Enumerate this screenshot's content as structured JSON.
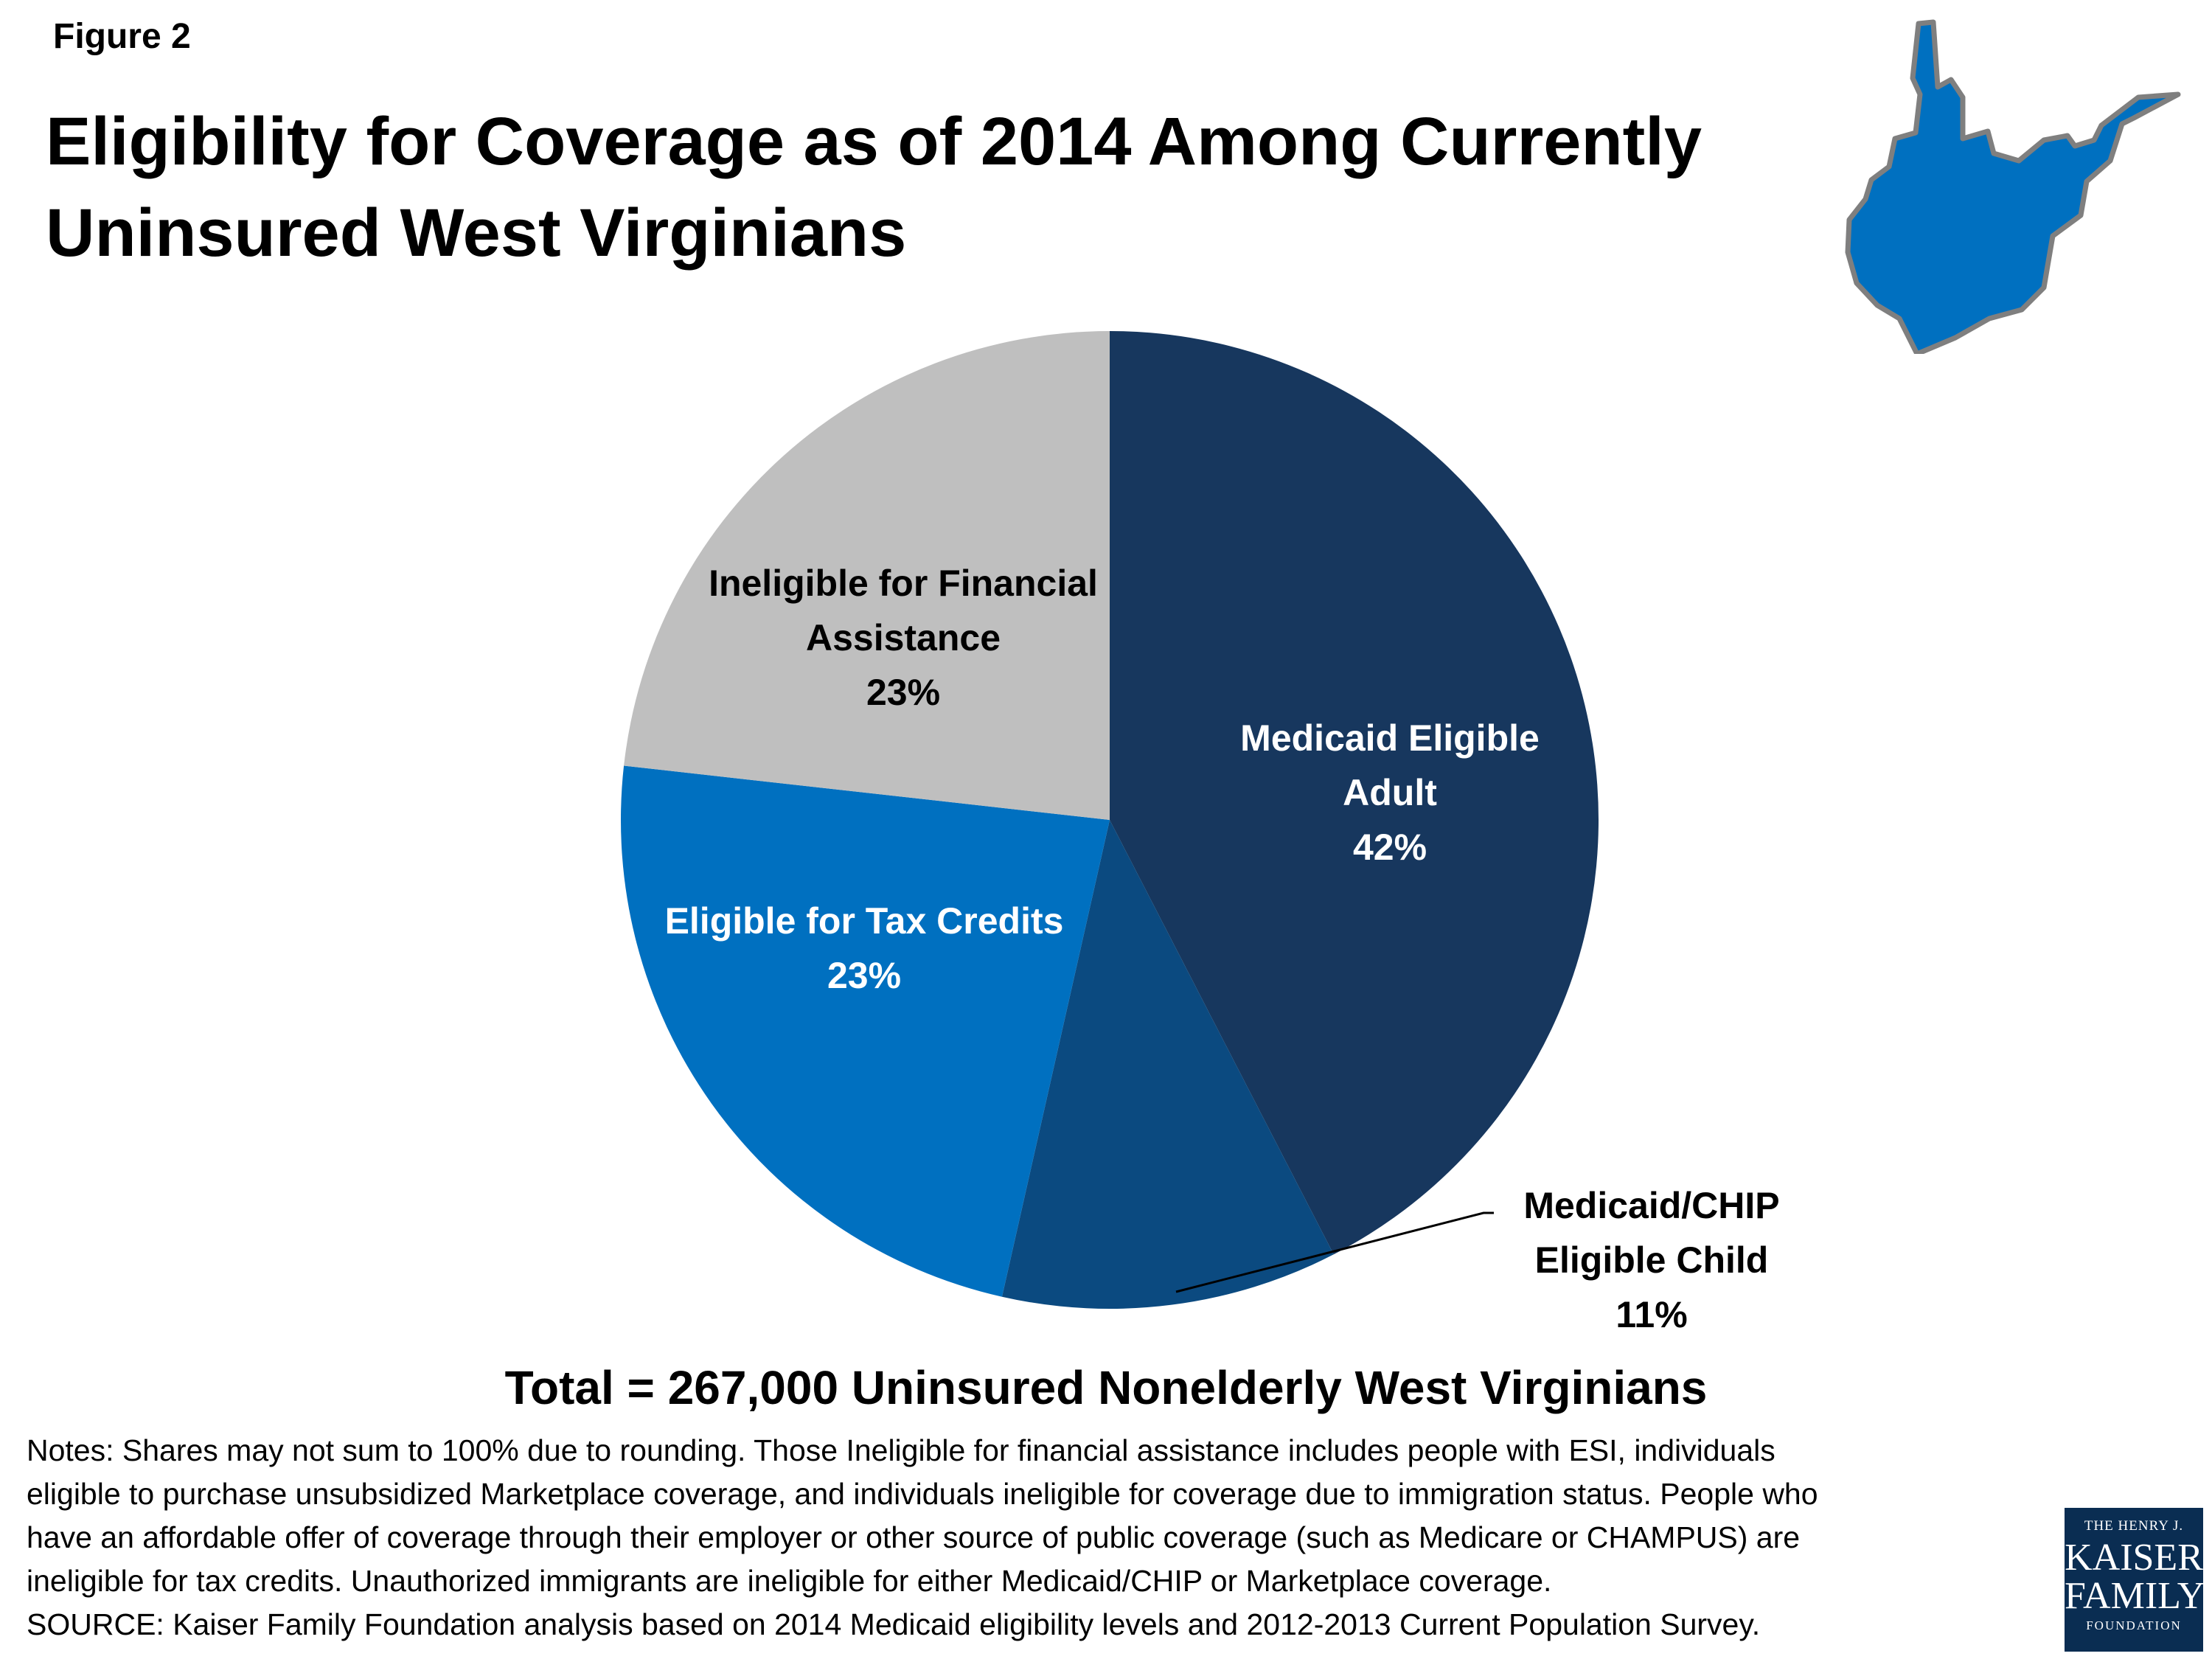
{
  "figure_label": "Figure 2",
  "title_line1": "Eligibility for Coverage as of 2014 Among Currently",
  "title_line2": "Uninsured West Virginians",
  "colors": {
    "medicaid_adult": "#17375e",
    "medicaid_child": "#0b4a80",
    "tax_credits": "#0070c0",
    "ineligible": "#bfbfbf",
    "map_fill": "#0070c0",
    "map_stroke": "#7f7f7f"
  },
  "icons": [
    "west-virginia-state-map-icon"
  ],
  "chart_data": {
    "type": "pie",
    "slices": [
      {
        "name": "Medicaid Eligible Adult",
        "value": 42,
        "label_lines": [
          "Medicaid Eligible",
          "Adult"
        ],
        "value_label": "42%",
        "color": "#17375e"
      },
      {
        "name": "Medicaid/CHIP Eligible Child",
        "value": 11,
        "label_lines": [
          "Medicaid/CHIP",
          "Eligible Child"
        ],
        "value_label": "11%",
        "color": "#0b4a80"
      },
      {
        "name": "Eligible for Tax Credits",
        "value": 23,
        "label_lines": [
          "Eligible for Tax Credits"
        ],
        "value_label": "23%",
        "color": "#0070c0"
      },
      {
        "name": "Ineligible for Financial Assistance",
        "value": 23,
        "label_lines": [
          "Ineligible for Financial",
          "Assistance"
        ],
        "value_label": "23%",
        "color": "#bfbfbf"
      }
    ],
    "start_angle": "12 o'clock",
    "direction": "clockwise"
  },
  "total_text": "Total = 267,000 Uninsured Nonelderly West Virginians",
  "notes_lines": [
    "Notes: Shares may not sum to 100% due to rounding. Those Ineligible for financial assistance includes people with ESI, individuals",
    "eligible to purchase unsubsidized Marketplace coverage, and individuals ineligible for coverage due to immigration status. People who",
    "have an affordable offer of coverage through their employer or other source of public coverage (such as Medicare or CHAMPUS) are",
    "ineligible for tax credits. Unauthorized immigrants are ineligible for either Medicaid/CHIP or Marketplace coverage.",
    "SOURCE: Kaiser Family Foundation analysis based on 2014 Medicaid eligibility levels and 2012-2013 Current Population Survey."
  ],
  "logo": {
    "line1": "THE HENRY J.",
    "line2": "KAISER",
    "line3": "FAMILY",
    "line4": "FOUNDATION"
  }
}
